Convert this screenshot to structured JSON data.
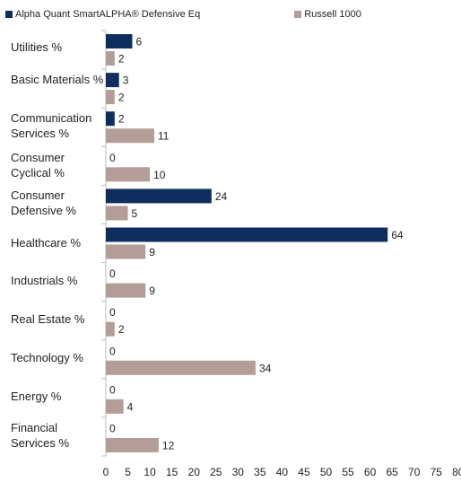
{
  "legend": {
    "series1": "Alpha Quant SmartALPHA® Defensive Eq",
    "series2": "Russell 1000"
  },
  "colors": {
    "series1": "#0e2f5e",
    "series2": "#b39d96",
    "axis": "#bdbdbd"
  },
  "chart_data": {
    "type": "bar",
    "orientation": "horizontal",
    "categories": [
      "Utilities %",
      "Basic Materials %",
      "Communication Services %",
      "Consumer Cyclical %",
      "Consumer Defensive %",
      "Healthcare %",
      "Industrials %",
      "Real Estate %",
      "Technology %",
      "Energy %",
      "Financial Services %"
    ],
    "series": [
      {
        "name": "Alpha Quant SmartALPHA® Defensive Eq",
        "values": [
          6,
          3,
          2,
          0,
          24,
          64,
          0,
          0,
          0,
          0,
          0
        ]
      },
      {
        "name": "Russell 1000",
        "values": [
          2,
          2,
          11,
          10,
          5,
          9,
          9,
          2,
          34,
          4,
          12
        ]
      }
    ],
    "xlim": [
      0,
      80
    ],
    "xticks": [
      0,
      5,
      10,
      15,
      20,
      25,
      30,
      35,
      40,
      45,
      50,
      55,
      60,
      65,
      70,
      75,
      80
    ],
    "legend_position": "top",
    "grid": false
  }
}
